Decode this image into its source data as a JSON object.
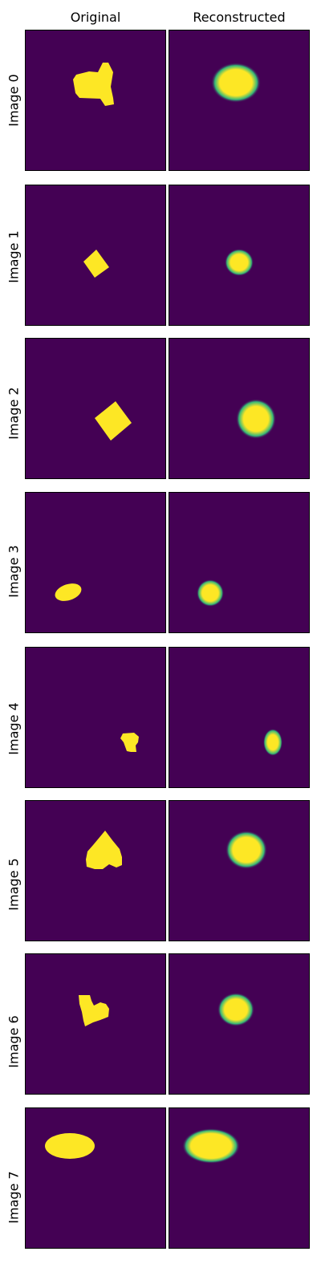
{
  "column_titles": {
    "original": "Original",
    "reconstructed": "Reconstructed"
  },
  "colors": {
    "background": "#440154",
    "foreground": "#fde725",
    "edge": "#21918c"
  },
  "rows": [
    {
      "label": "Image 0",
      "original_shape": "heart",
      "reconstructed_shape": "blurred-ellipse"
    },
    {
      "label": "Image 1",
      "original_shape": "square",
      "reconstructed_shape": "blurred-ellipse"
    },
    {
      "label": "Image 2",
      "original_shape": "square",
      "reconstructed_shape": "blurred-ellipse"
    },
    {
      "label": "Image 3",
      "original_shape": "ellipse",
      "reconstructed_shape": "blurred-ellipse"
    },
    {
      "label": "Image 4",
      "original_shape": "heart",
      "reconstructed_shape": "blurred-ellipse"
    },
    {
      "label": "Image 5",
      "original_shape": "heart",
      "reconstructed_shape": "blurred-ellipse"
    },
    {
      "label": "Image 6",
      "original_shape": "heart",
      "reconstructed_shape": "blurred-ellipse"
    },
    {
      "label": "Image 7",
      "original_shape": "ellipse",
      "reconstructed_shape": "blurred-ellipse"
    }
  ]
}
